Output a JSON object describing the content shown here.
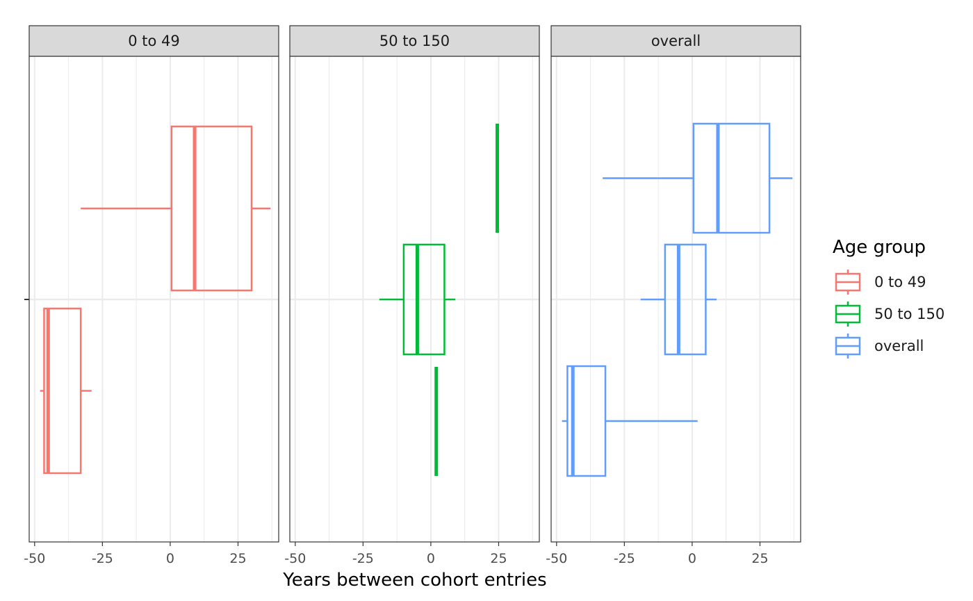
{
  "chart_data": {
    "type": "boxplot",
    "xlabel": "Years between cohort entries",
    "ylabel": "",
    "xlim": [
      -52,
      40
    ],
    "x_ticks": [
      -50,
      -25,
      0,
      25
    ],
    "x_tick_labels": [
      "-50",
      "-25",
      "0",
      "25"
    ],
    "grid": true,
    "legend": {
      "title": "Age group",
      "position": "right",
      "entries": [
        {
          "label": "0 to 49",
          "color": "#F8766D"
        },
        {
          "label": "50 to 150",
          "color": "#00BA38"
        },
        {
          "label": "overall",
          "color": "#619CFF"
        }
      ]
    },
    "facets": [
      {
        "label": "0 to 49",
        "color": "#F8766D",
        "boxes": [
          {
            "group": "upper",
            "whisker_low": -33,
            "q1": 0.5,
            "median": 9,
            "q3": 30,
            "whisker_high": 37
          },
          {
            "group": "lower",
            "whisker_low": -48,
            "q1": -46.5,
            "median": -45,
            "q3": -33,
            "whisker_high": -29
          }
        ]
      },
      {
        "label": "50 to 150",
        "color": "#00BA38",
        "boxes": [
          {
            "group": "upper",
            "whisker_low": 24.5,
            "q1": 24.5,
            "median": 24.5,
            "q3": 24.5,
            "whisker_high": 24.5
          },
          {
            "group": "middle",
            "whisker_low": -19,
            "q1": -10,
            "median": -5,
            "q3": 5,
            "whisker_high": 9
          },
          {
            "group": "lower",
            "whisker_low": 2,
            "q1": 2,
            "median": 2,
            "q3": 2,
            "whisker_high": 2
          }
        ]
      },
      {
        "label": "overall",
        "color": "#619CFF",
        "boxes": [
          {
            "group": "upper",
            "whisker_low": -33,
            "q1": 0.5,
            "median": 9.5,
            "q3": 28.5,
            "whisker_high": 37
          },
          {
            "group": "middle",
            "whisker_low": -19,
            "q1": -10,
            "median": -5,
            "q3": 5,
            "whisker_high": 9
          },
          {
            "group": "lower",
            "whisker_low": -48,
            "q1": -46,
            "median": -44,
            "q3": -32,
            "whisker_high": 2
          }
        ]
      }
    ]
  }
}
